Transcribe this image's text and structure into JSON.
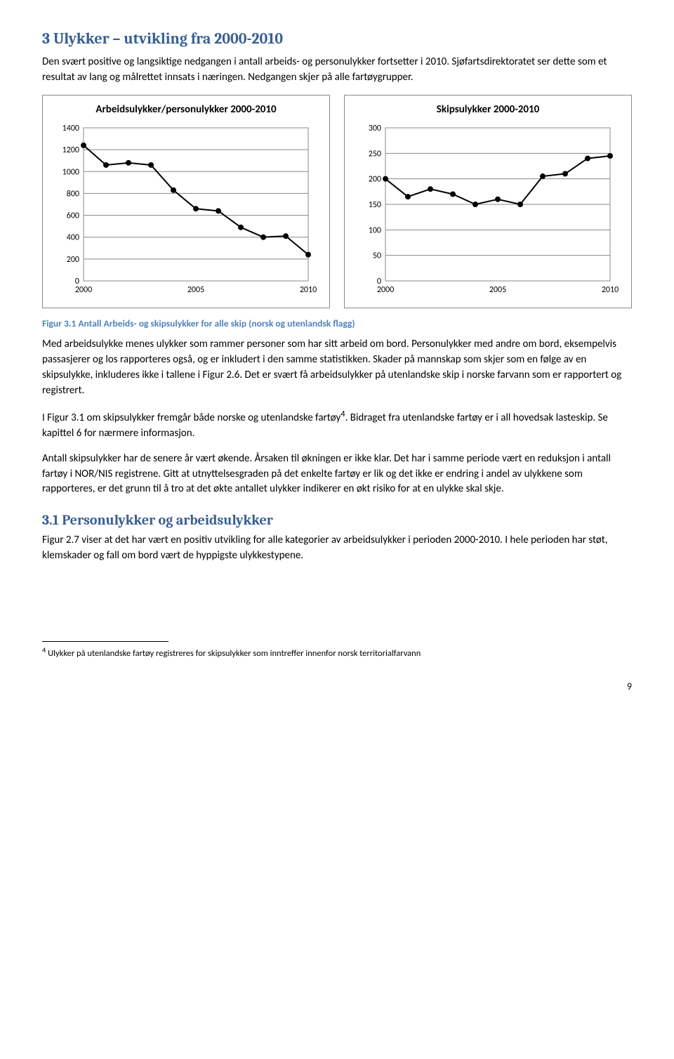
{
  "heading": "3   Ulykker – utvikling fra 2000-2010",
  "intro": "Den svært positive og langsiktige nedgangen i antall arbeids- og personulykker fortsetter i 2010. Sjøfartsdirektoratet ser dette som et resultat av lang og målrettet innsats i næringen. Nedgangen skjer på alle fartøygrupper.",
  "chart_left": {
    "type": "line",
    "title": "Arbeidsulykker/personulykker 2000-2010",
    "years": [
      2000,
      2001,
      2002,
      2003,
      2004,
      2005,
      2006,
      2007,
      2008,
      2009,
      2010
    ],
    "values": [
      1240,
      1060,
      1080,
      1060,
      830,
      660,
      640,
      490,
      400,
      410,
      240
    ],
    "ylim": [
      0,
      1400
    ],
    "ytick_step": 200,
    "xticks": [
      2000,
      2005,
      2010
    ],
    "line_color": "#000000",
    "marker_color": "#000000",
    "grid_color": "#888888",
    "background_color": "#ffffff",
    "axis_fontsize": 12,
    "title_fontsize": 15,
    "line_width": 2,
    "marker_size": 4
  },
  "chart_right": {
    "type": "line",
    "title": "Skipsulykker 2000-2010",
    "years": [
      2000,
      2001,
      2002,
      2003,
      2004,
      2005,
      2006,
      2007,
      2008,
      2009,
      2010
    ],
    "values": [
      200,
      165,
      180,
      170,
      150,
      160,
      150,
      205,
      210,
      240,
      245
    ],
    "ylim": [
      0,
      300
    ],
    "ytick_step": 50,
    "xticks": [
      2000,
      2005,
      2010
    ],
    "line_color": "#000000",
    "marker_color": "#000000",
    "grid_color": "#888888",
    "background_color": "#ffffff",
    "axis_fontsize": 12,
    "title_fontsize": 15,
    "line_width": 2,
    "marker_size": 4
  },
  "figure_caption": "Figur 3.1 Antall Arbeids- og skipsulykker for alle skip (norsk og utenlandsk flagg)",
  "para1": "Med arbeidsulykke menes ulykker som rammer personer som har sitt arbeid om bord. Personulykker med andre om bord, eksempelvis passasjerer og los rapporteres også, og er inkludert i den samme statistikken. Skader på mannskap som skjer som en følge av en skipsulykke, inkluderes ikke i tallene i Figur 2.6. Det er svært få arbeidsulykker på utenlandske skip i norske farvann som er rapportert og registrert.",
  "para2_pre": "I Figur 3.1 om skipsulykker fremgår både norske og utenlandske fartøy",
  "para2_sup": "4",
  "para2_post": ". Bidraget fra utenlandske fartøy er i all hovedsak lasteskip. Se kapittel 6 for nærmere informasjon.",
  "para3": "Antall skipsulykker har de senere år vært økende. Årsaken til økningen er ikke klar. Det har i samme periode vært en reduksjon i antall fartøy i NOR/NIS registrene. Gitt at utnyttelsesgraden på det enkelte fartøy er lik og det ikke er endring i andel av ulykkene som rapporteres, er det grunn til å tro at det økte antallet ulykker indikerer en økt risiko for at en ulykke skal skje.",
  "subheading": "3.1   Personulykker og arbeidsulykker",
  "para4": "Figur 2.7 viser at det har vært en positiv utvikling for alle kategorier av arbeidsulykker i perioden 2000-2010. I hele perioden har støt, klemskader og fall om bord vært de hyppigste ulykkestypene.",
  "footnote_num": "4",
  "footnote_text": " Ulykker på utenlandske fartøy registreres for skipsulykker som inntreffer innenfor norsk territorialfarvann",
  "page_number": "9"
}
